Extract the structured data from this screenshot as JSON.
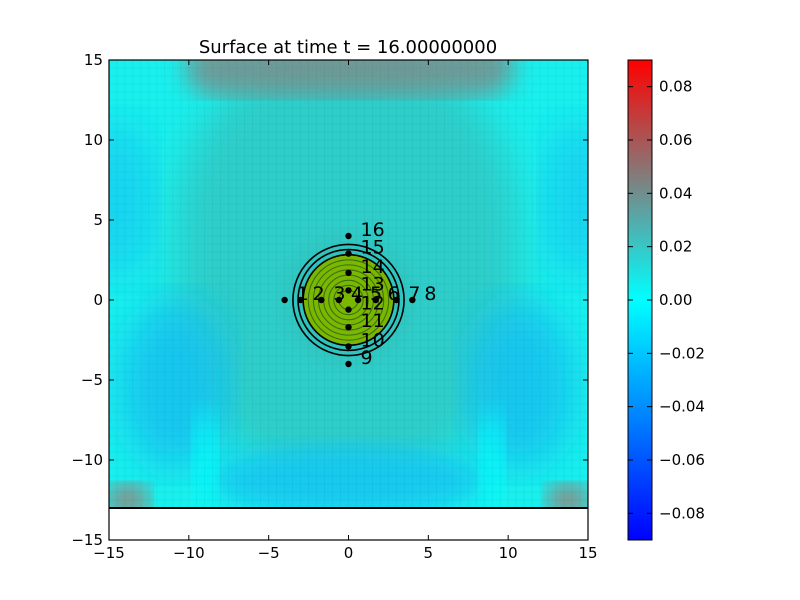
{
  "chart_data": {
    "type": "heatmap",
    "title": "Surface at time t =    16.00000000",
    "xlabel": "",
    "ylabel": "",
    "xlim": [
      -15,
      15
    ],
    "ylim": [
      -15,
      15
    ],
    "x_ticks": [
      -15,
      -10,
      -5,
      0,
      5,
      10,
      15
    ],
    "y_ticks": [
      -15,
      -10,
      -5,
      0,
      5,
      10,
      15
    ],
    "x_tick_labels": [
      "−15",
      "−10",
      "−5",
      "0",
      "5",
      "10",
      "15"
    ],
    "y_tick_labels": [
      "−15",
      "−10",
      "−5",
      "0",
      "5",
      "10",
      "15"
    ],
    "surface_extent": {
      "x": [
        -15,
        15
      ],
      "y": [
        -13,
        15
      ]
    },
    "grid": true,
    "colorbar": {
      "range": [
        -0.09,
        0.09
      ],
      "ticks": [
        -0.08,
        -0.06,
        -0.04,
        -0.02,
        0.0,
        0.02,
        0.04,
        0.06,
        0.08
      ],
      "tick_labels": [
        "−0.08",
        "−0.06",
        "−0.04",
        "−0.02",
        "0.00",
        "0.02",
        "0.04",
        "0.06",
        "0.08"
      ],
      "colors": [
        "#0000ff",
        "#00ffff",
        "#ff0000"
      ]
    },
    "land_region": {
      "center": [
        0,
        0
      ],
      "radius": 3.5,
      "color": "#7ab800"
    },
    "gauges": [
      {
        "id": "1",
        "x": -4,
        "y": 0
      },
      {
        "id": "2",
        "x": -3,
        "y": 0
      },
      {
        "id": "3",
        "x": -1.7,
        "y": 0
      },
      {
        "id": "4",
        "x": -0.6,
        "y": 0
      },
      {
        "id": "5",
        "x": 0.6,
        "y": 0
      },
      {
        "id": "6",
        "x": 1.7,
        "y": 0
      },
      {
        "id": "7",
        "x": 3,
        "y": 0
      },
      {
        "id": "8",
        "x": 4,
        "y": 0
      },
      {
        "id": "9",
        "x": 0,
        "y": -4
      },
      {
        "id": "10",
        "x": 0,
        "y": -2.9
      },
      {
        "id": "11",
        "x": 0,
        "y": -1.7
      },
      {
        "id": "12",
        "x": 0,
        "y": -0.6
      },
      {
        "id": "13",
        "x": 0,
        "y": 0.6
      },
      {
        "id": "14",
        "x": 0,
        "y": 1.7
      },
      {
        "id": "15",
        "x": 0,
        "y": 2.9
      },
      {
        "id": "16",
        "x": 0,
        "y": 4
      }
    ],
    "contour_levels": 10
  }
}
